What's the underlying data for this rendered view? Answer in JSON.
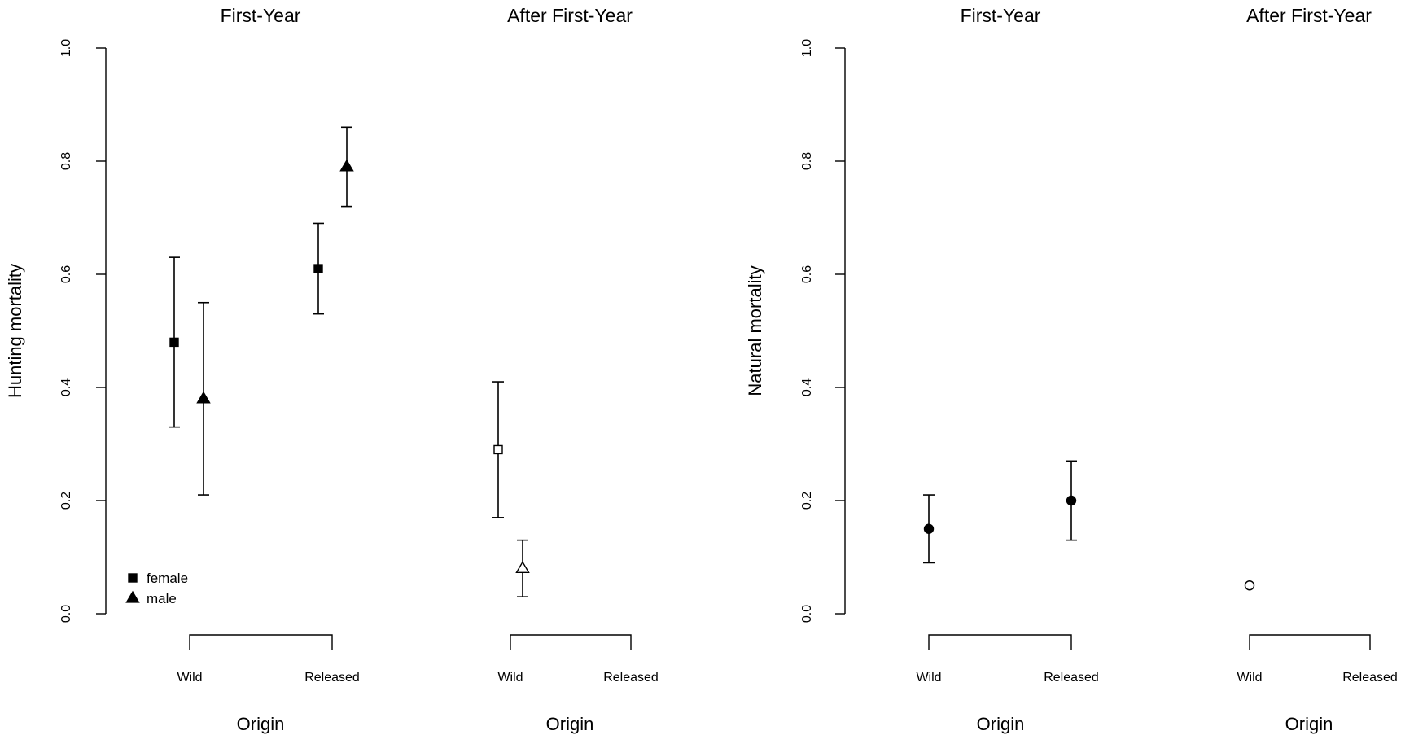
{
  "chart_data": [
    {
      "type": "scatter",
      "ylabel": "Hunting mortality",
      "ylim": [
        0,
        1
      ],
      "yticks": [
        "0.0",
        "0.2",
        "0.4",
        "0.6",
        "0.8",
        "1.0"
      ],
      "legend": {
        "placement": "bottom-left",
        "entries": [
          {
            "label": "female",
            "marker": "square",
            "fill": "filled"
          },
          {
            "label": "male",
            "marker": "triangle",
            "fill": "filled"
          }
        ]
      },
      "panels": [
        {
          "title": "First-Year",
          "xlabel": "Origin",
          "categories": [
            "Wild",
            "Released"
          ],
          "points": [
            {
              "origin": "Wild",
              "sex": "female",
              "marker": "square",
              "filled": true,
              "value": 0.48,
              "lower": 0.33,
              "upper": 0.63
            },
            {
              "origin": "Wild",
              "sex": "male",
              "marker": "triangle",
              "filled": true,
              "value": 0.38,
              "lower": 0.21,
              "upper": 0.55
            },
            {
              "origin": "Released",
              "sex": "female",
              "marker": "square",
              "filled": true,
              "value": 0.61,
              "lower": 0.53,
              "upper": 0.69
            },
            {
              "origin": "Released",
              "sex": "male",
              "marker": "triangle",
              "filled": true,
              "value": 0.79,
              "lower": 0.72,
              "upper": 0.86
            }
          ]
        },
        {
          "title": "After First-Year",
          "xlabel": "Origin",
          "categories": [
            "Wild",
            "Released"
          ],
          "points": [
            {
              "origin": "Wild",
              "sex": "female",
              "marker": "square",
              "filled": false,
              "value": 0.29,
              "lower": 0.17,
              "upper": 0.41
            },
            {
              "origin": "Wild",
              "sex": "male",
              "marker": "triangle",
              "filled": false,
              "value": 0.08,
              "lower": 0.03,
              "upper": 0.13
            }
          ]
        }
      ]
    },
    {
      "type": "scatter",
      "ylabel": "Natural mortality",
      "ylim": [
        0,
        1
      ],
      "yticks": [
        "0.0",
        "0.2",
        "0.4",
        "0.6",
        "0.8",
        "1.0"
      ],
      "panels": [
        {
          "title": "First-Year",
          "xlabel": "Origin",
          "categories": [
            "Wild",
            "Released"
          ],
          "points": [
            {
              "origin": "Wild",
              "marker": "circle",
              "filled": true,
              "value": 0.15,
              "lower": 0.09,
              "upper": 0.21
            },
            {
              "origin": "Released",
              "marker": "circle",
              "filled": true,
              "value": 0.2,
              "lower": 0.13,
              "upper": 0.27
            }
          ]
        },
        {
          "title": "After First-Year",
          "xlabel": "Origin",
          "categories": [
            "Wild",
            "Released"
          ],
          "points": [
            {
              "origin": "Wild",
              "marker": "circle",
              "filled": false,
              "value": 0.05
            }
          ]
        }
      ]
    }
  ]
}
